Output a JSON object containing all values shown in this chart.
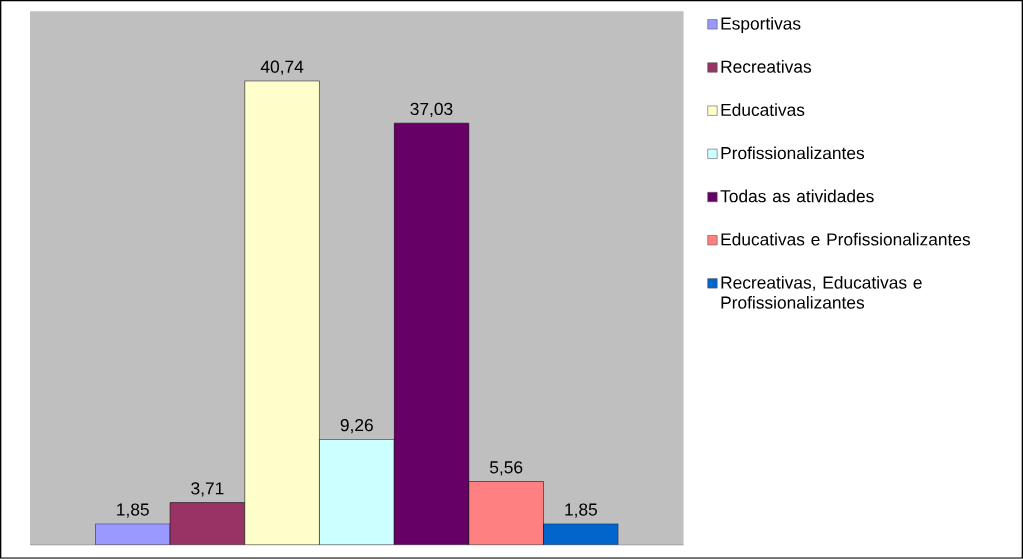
{
  "chart_data": {
    "type": "bar",
    "categories": [
      null
    ],
    "legend": "right",
    "series": [
      {
        "name": "Esportivas",
        "color": "#9999ff",
        "values": [
          1.85
        ],
        "value_labels": [
          "1,85"
        ]
      },
      {
        "name": "Recreativas",
        "color": "#993366",
        "values": [
          3.71
        ],
        "value_labels": [
          "3,71"
        ]
      },
      {
        "name": "Educativas",
        "color": "#ffffcc",
        "values": [
          40.74
        ],
        "value_labels": [
          "40,74"
        ]
      },
      {
        "name": "Profissionalizantes",
        "color": "#ccffff",
        "values": [
          9.26
        ],
        "value_labels": [
          "9,26"
        ]
      },
      {
        "name": "Todas as atividades",
        "color": "#660066",
        "values": [
          37.03
        ],
        "value_labels": [
          "37,03"
        ]
      },
      {
        "name": "Educativas e Profissionalizantes",
        "color": "#ff8080",
        "values": [
          5.56
        ],
        "value_labels": [
          "5,56"
        ]
      },
      {
        "name": "Recreativas, Educativas e Profissionalizantes",
        "color": "#0066cc",
        "values": [
          1.85
        ],
        "value_labels": [
          "1,85"
        ]
      }
    ]
  }
}
